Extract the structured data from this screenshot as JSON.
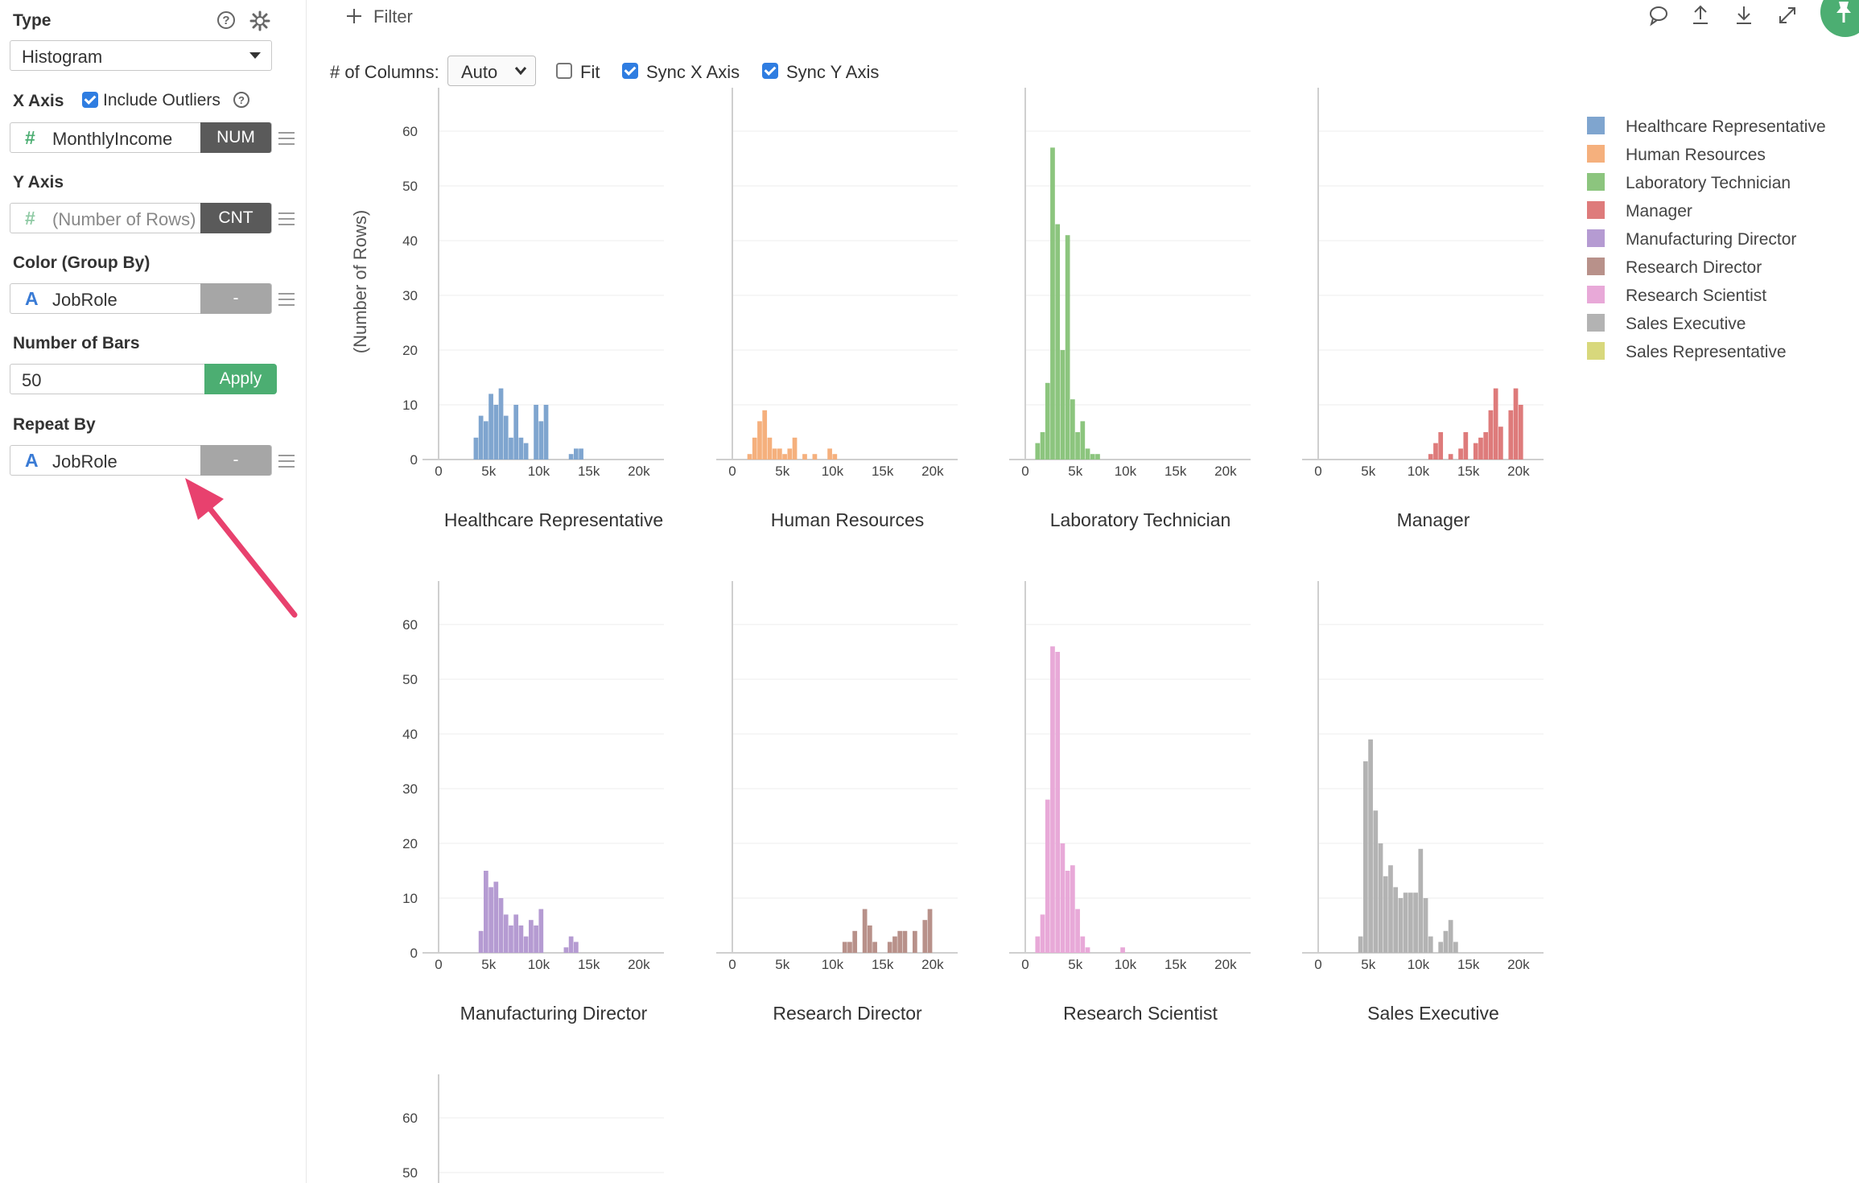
{
  "panel": {
    "type_label": "Type",
    "type_value": "Histogram",
    "xaxis_label": "X Axis",
    "include_outliers": "Include Outliers",
    "x_field": "MonthlyIncome",
    "x_tag": "NUM",
    "yaxis_label": "Y Axis",
    "y_field": "(Number of Rows)",
    "y_tag": "CNT",
    "color_label": "Color (Group By)",
    "color_field": "JobRole",
    "color_tag": "-",
    "bars_label": "Number of Bars",
    "bars_value": "50",
    "apply_label": "Apply",
    "repeat_label": "Repeat By",
    "repeat_field": "JobRole",
    "repeat_tag": "-",
    "num_glyph": "#",
    "text_glyph": "A",
    "help_glyph": "?"
  },
  "toolbar": {
    "filter_label": "Filter",
    "columns_label": "# of Columns:",
    "columns_value": "Auto",
    "fit_label": "Fit",
    "sync_x_label": "Sync X Axis",
    "sync_y_label": "Sync Y Axis",
    "fit_checked": false,
    "sync_x_checked": true,
    "sync_y_checked": true
  },
  "chart_data": {
    "type": "bar",
    "ylabel": "(Number of Rows)",
    "ylim": [
      0,
      65
    ],
    "xlim": [
      0,
      22500
    ],
    "y_ticks": [
      "0",
      "10",
      "20",
      "30",
      "40",
      "50",
      "60"
    ],
    "x_ticks": [
      "0",
      "5k",
      "10k",
      "15k",
      "20k"
    ],
    "bin_width": 500,
    "panels": [
      {
        "name": "Healthcare Representative",
        "color": "#7fa5cf",
        "bins": [
          [
            3500,
            4
          ],
          [
            4000,
            8
          ],
          [
            4500,
            7
          ],
          [
            5000,
            12
          ],
          [
            5500,
            10
          ],
          [
            6000,
            13
          ],
          [
            6500,
            8
          ],
          [
            7000,
            4
          ],
          [
            7500,
            10
          ],
          [
            8000,
            4
          ],
          [
            8500,
            3
          ],
          [
            9500,
            10
          ],
          [
            10000,
            7
          ],
          [
            10500,
            10
          ],
          [
            13000,
            1
          ],
          [
            13500,
            2
          ],
          [
            14000,
            2
          ]
        ]
      },
      {
        "name": "Human Resources",
        "color": "#f5b07d",
        "bins": [
          [
            1500,
            1
          ],
          [
            2000,
            4
          ],
          [
            2500,
            7
          ],
          [
            3000,
            9
          ],
          [
            3500,
            4
          ],
          [
            4000,
            2
          ],
          [
            4500,
            2
          ],
          [
            5000,
            1
          ],
          [
            5500,
            2
          ],
          [
            6000,
            4
          ],
          [
            7000,
            1
          ],
          [
            8000,
            1
          ],
          [
            9500,
            2
          ],
          [
            10000,
            1
          ]
        ]
      },
      {
        "name": "Laboratory Technician",
        "color": "#8cc57e",
        "bins": [
          [
            1000,
            3
          ],
          [
            1500,
            5
          ],
          [
            2000,
            14
          ],
          [
            2500,
            57
          ],
          [
            3000,
            43
          ],
          [
            3500,
            20
          ],
          [
            4000,
            41
          ],
          [
            4500,
            11
          ],
          [
            5000,
            5
          ],
          [
            5500,
            7
          ],
          [
            6000,
            2
          ],
          [
            6500,
            1
          ],
          [
            7000,
            1
          ]
        ]
      },
      {
        "name": "Manager",
        "color": "#de7b7b",
        "bins": [
          [
            11000,
            1
          ],
          [
            11500,
            3
          ],
          [
            12000,
            5
          ],
          [
            13000,
            1
          ],
          [
            14000,
            2
          ],
          [
            14500,
            5
          ],
          [
            15500,
            3
          ],
          [
            16000,
            4
          ],
          [
            16500,
            5
          ],
          [
            17000,
            9
          ],
          [
            17500,
            13
          ],
          [
            18000,
            6
          ],
          [
            19000,
            9
          ],
          [
            19500,
            13
          ],
          [
            20000,
            10
          ]
        ]
      },
      {
        "name": "Manufacturing Director",
        "color": "#b59bd2",
        "bins": [
          [
            4000,
            4
          ],
          [
            4500,
            15
          ],
          [
            5000,
            12
          ],
          [
            5500,
            13
          ],
          [
            6000,
            10
          ],
          [
            6500,
            7
          ],
          [
            7000,
            5
          ],
          [
            7500,
            7
          ],
          [
            8000,
            5
          ],
          [
            8500,
            3
          ],
          [
            9000,
            6
          ],
          [
            9500,
            5
          ],
          [
            10000,
            8
          ],
          [
            12500,
            1
          ],
          [
            13000,
            3
          ],
          [
            13500,
            2
          ]
        ]
      },
      {
        "name": "Research Director",
        "color": "#b8918a",
        "bins": [
          [
            11000,
            2
          ],
          [
            11500,
            2
          ],
          [
            12000,
            4
          ],
          [
            13000,
            8
          ],
          [
            13500,
            5
          ],
          [
            14000,
            2
          ],
          [
            15500,
            2
          ],
          [
            16000,
            3
          ],
          [
            16500,
            4
          ],
          [
            17000,
            4
          ],
          [
            18000,
            4
          ],
          [
            19000,
            6
          ],
          [
            19500,
            8
          ]
        ]
      },
      {
        "name": "Research Scientist",
        "color": "#e8a9d8",
        "bins": [
          [
            1000,
            3
          ],
          [
            1500,
            7
          ],
          [
            2000,
            28
          ],
          [
            2500,
            56
          ],
          [
            3000,
            55
          ],
          [
            3500,
            20
          ],
          [
            4000,
            15
          ],
          [
            4500,
            16
          ],
          [
            5000,
            8
          ],
          [
            5500,
            3
          ],
          [
            6000,
            1
          ],
          [
            9500,
            1
          ]
        ]
      },
      {
        "name": "Sales Executive",
        "color": "#b3b3b3",
        "bins": [
          [
            4000,
            3
          ],
          [
            4500,
            35
          ],
          [
            5000,
            39
          ],
          [
            5500,
            26
          ],
          [
            6000,
            20
          ],
          [
            6500,
            14
          ],
          [
            7000,
            16
          ],
          [
            7500,
            12
          ],
          [
            8000,
            10
          ],
          [
            8500,
            11
          ],
          [
            9000,
            11
          ],
          [
            9500,
            11
          ],
          [
            10000,
            19
          ],
          [
            10500,
            10
          ],
          [
            11000,
            3
          ],
          [
            12000,
            2
          ],
          [
            12500,
            4
          ],
          [
            13000,
            6
          ],
          [
            13500,
            2
          ]
        ]
      }
    ],
    "partial_panel": {
      "name": "Sales Representative",
      "color": "#d8d87c"
    },
    "legend": [
      "Healthcare Representative",
      "Human Resources",
      "Laboratory Technician",
      "Manager",
      "Manufacturing Director",
      "Research Director",
      "Research Scientist",
      "Sales Executive",
      "Sales Representative"
    ],
    "legend_colors": [
      "#7fa5cf",
      "#f5b07d",
      "#8cc57e",
      "#de7b7b",
      "#b59bd2",
      "#b8918a",
      "#e8a9d8",
      "#b3b3b3",
      "#d8d87c"
    ]
  },
  "colors": {
    "accent_green": "#4cae72",
    "checkbox_blue": "#2f7de1",
    "arrow_pink": "#e8416e"
  },
  "icons": [
    "help-icon",
    "gear-icon",
    "dropdown-caret-icon",
    "hamburger-icon",
    "plus-icon",
    "comment-icon",
    "upload-icon",
    "download-icon",
    "expand-icon",
    "pin-icon",
    "callout-arrow-icon"
  ]
}
